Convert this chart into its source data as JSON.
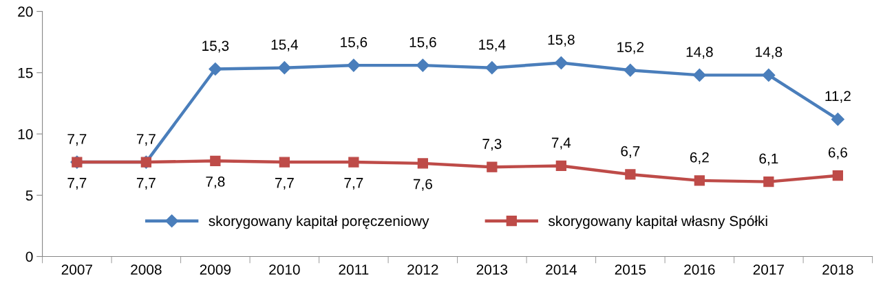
{
  "chart_data": {
    "type": "line",
    "categories": [
      "2007",
      "2008",
      "2009",
      "2010",
      "2011",
      "2012",
      "2013",
      "2014",
      "2015",
      "2016",
      "2017",
      "2018"
    ],
    "series": [
      {
        "name": "skorygowany kapitał poręczeniowy",
        "color": "#4a7ebb",
        "marker": "diamond",
        "values": [
          7.7,
          7.7,
          15.3,
          15.4,
          15.6,
          15.6,
          15.4,
          15.8,
          15.2,
          14.8,
          14.8,
          11.2
        ],
        "value_labels": [
          "7,7",
          "7,7",
          "15,3",
          "15,4",
          "15,6",
          "15,6",
          "15,4",
          "15,8",
          "15,2",
          "14,8",
          "14,8",
          "11,2"
        ]
      },
      {
        "name": "skorygowany kapitał własny Spółki",
        "color": "#be4b48",
        "marker": "square",
        "values": [
          7.7,
          7.7,
          7.8,
          7.7,
          7.7,
          7.6,
          7.3,
          7.4,
          6.7,
          6.2,
          6.1,
          6.6
        ],
        "value_labels": [
          "7,7",
          "7,7",
          "7,8",
          "7,7",
          "7,7",
          "7,6",
          "7,3",
          "7,4",
          "6,7",
          "6,2",
          "6,1",
          "6,6"
        ]
      }
    ],
    "ylim": [
      0,
      20
    ],
    "yticks": [
      0,
      5,
      10,
      15,
      20
    ],
    "grid": false,
    "legend": "bottom",
    "line_style": "solid"
  }
}
